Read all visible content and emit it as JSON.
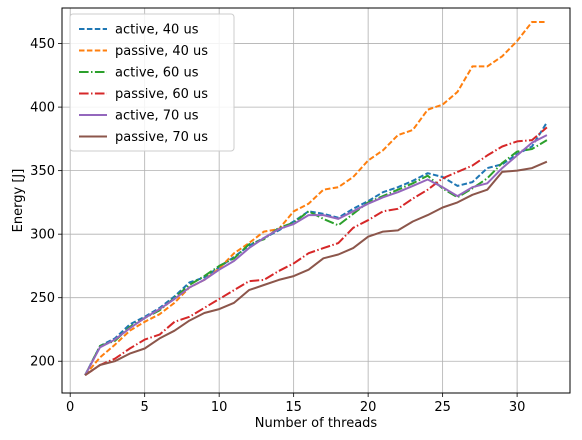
{
  "chart_data": {
    "type": "line",
    "title": "",
    "xlabel": "Number of threads",
    "ylabel": "Energy [J]",
    "xlim": [
      -0.55,
      33.55
    ],
    "ylim": [
      175,
      478
    ],
    "xticks": [
      0,
      5,
      10,
      15,
      20,
      25,
      30
    ],
    "yticks": [
      200,
      250,
      300,
      350,
      400,
      450
    ],
    "grid": true,
    "legend_position": "top-left",
    "x": [
      1,
      2,
      3,
      4,
      5,
      6,
      7,
      8,
      9,
      10,
      11,
      12,
      13,
      14,
      15,
      16,
      17,
      18,
      19,
      20,
      21,
      22,
      23,
      24,
      25,
      26,
      27,
      28,
      29,
      30,
      31,
      32
    ],
    "series": [
      {
        "name": "active, 40 us",
        "color": "#1f77b4",
        "dash": "dashed",
        "values": [
          189,
          212,
          218,
          229,
          235,
          242,
          251,
          262,
          266,
          274,
          282,
          291,
          297,
          303,
          310,
          318,
          316,
          313,
          320,
          326,
          333,
          337,
          342,
          348,
          345,
          338,
          341,
          352,
          355,
          363,
          369,
          388
        ]
      },
      {
        "name": "passive, 40 us",
        "color": "#ff7f0e",
        "dash": "dashed",
        "values": [
          189,
          203,
          213,
          224,
          231,
          237,
          246,
          258,
          264,
          273,
          285,
          293,
          302,
          304,
          318,
          324,
          335,
          337,
          345,
          358,
          366,
          378,
          382,
          398,
          402,
          412,
          432,
          432,
          440,
          452,
          467,
          467
        ]
      },
      {
        "name": "active, 60 us",
        "color": "#2ca02c",
        "dash": "dashdot",
        "values": [
          189,
          212,
          216,
          227,
          234,
          240,
          250,
          260,
          267,
          275,
          281,
          292,
          296,
          305,
          309,
          318,
          312,
          307,
          316,
          325,
          330,
          335,
          340,
          346,
          336,
          329,
          336,
          344,
          356,
          365,
          367,
          374
        ]
      },
      {
        "name": "passive, 60 us",
        "color": "#d62728",
        "dash": "dashdot",
        "values": [
          189,
          197,
          202,
          210,
          217,
          221,
          231,
          235,
          242,
          249,
          256,
          263,
          264,
          271,
          277,
          285,
          289,
          293,
          305,
          311,
          318,
          320,
          328,
          335,
          344,
          349,
          354,
          362,
          369,
          373,
          374,
          384
        ]
      },
      {
        "name": "active, 70 us",
        "color": "#9467bd",
        "dash": "solid",
        "values": [
          189,
          211,
          217,
          226,
          234,
          241,
          249,
          258,
          264,
          272,
          279,
          289,
          297,
          304,
          308,
          315,
          315,
          312,
          318,
          324,
          329,
          333,
          338,
          343,
          337,
          330,
          337,
          340,
          352,
          362,
          372,
          378
        ]
      },
      {
        "name": "passive, 70 us",
        "color": "#8c564b",
        "dash": "solid",
        "values": [
          189,
          197,
          200,
          206,
          210,
          218,
          224,
          232,
          238,
          241,
          246,
          256,
          260,
          264,
          267,
          272,
          281,
          284,
          289,
          298,
          302,
          303,
          310,
          315,
          321,
          325,
          331,
          335,
          349,
          350,
          352,
          357
        ]
      }
    ]
  }
}
